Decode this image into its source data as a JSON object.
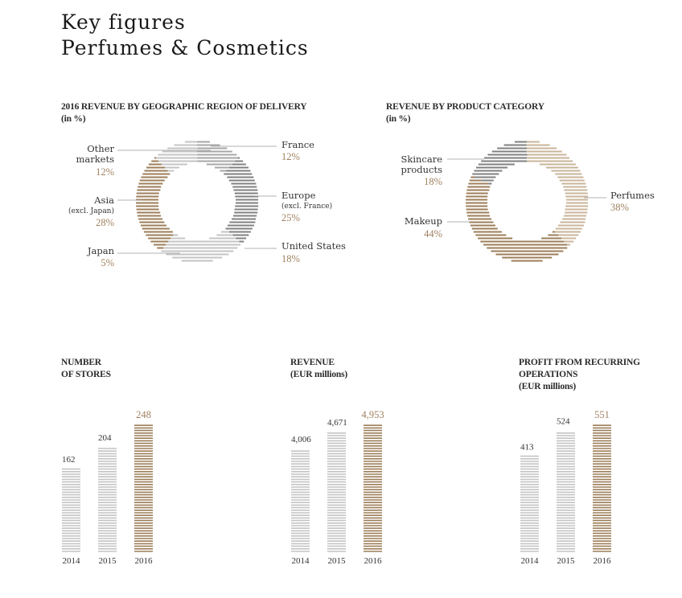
{
  "page": {
    "title_line1": "Key figures",
    "title_line2": "Perfumes & Cosmetics"
  },
  "colors": {
    "gold": "#9c7e59",
    "gold_text": "#a08260",
    "grey_dark": "#808080",
    "grey_light": "#c4c4c4",
    "grey_mid": "#a7a7a7"
  },
  "chart_data": [
    {
      "type": "pie",
      "title": "2016 REVENUE BY GEOGRAPHIC REGION OF DELIVERY",
      "subtitle": "(in %)",
      "slices": [
        {
          "name": "France",
          "detail": "",
          "value": 12,
          "value_label": "12%"
        },
        {
          "name": "Europe",
          "detail": "(excl. France)",
          "value": 25,
          "value_label": "25%"
        },
        {
          "name": "United States",
          "detail": "",
          "value": 18,
          "value_label": "18%"
        },
        {
          "name": "Japan",
          "detail": "",
          "value": 5,
          "value_label": "5%"
        },
        {
          "name": "Asia",
          "detail": "(excl. Japan)",
          "value": 28,
          "value_label": "28%"
        },
        {
          "name": "Other markets",
          "detail": "",
          "value": 12,
          "value_label": "12%"
        }
      ]
    },
    {
      "type": "pie",
      "title": "REVENUE BY PRODUCT CATEGORY",
      "subtitle": "(in %)",
      "slices": [
        {
          "name": "Perfumes",
          "value": 38,
          "value_label": "38%"
        },
        {
          "name": "Makeup",
          "value": 44,
          "value_label": "44%"
        },
        {
          "name": "Skincare products",
          "value": 18,
          "value_label": "18%"
        }
      ]
    },
    {
      "type": "bar",
      "title": "NUMBER OF STORES",
      "title_line1": "NUMBER",
      "title_line2": "OF STORES",
      "categories": [
        "2014",
        "2015",
        "2016"
      ],
      "values": [
        162,
        204,
        248
      ],
      "value_labels": [
        "162",
        "204",
        "248"
      ],
      "ylim": [
        0,
        248
      ]
    },
    {
      "type": "bar",
      "title": "REVENUE (EUR millions)",
      "title_line1": "REVENUE",
      "title_line2": "(EUR millions)",
      "categories": [
        "2014",
        "2015",
        "2016"
      ],
      "values": [
        4006,
        4671,
        4953
      ],
      "value_labels": [
        "4,006",
        "4,671",
        "4,953"
      ],
      "ylim": [
        0,
        4953
      ]
    },
    {
      "type": "bar",
      "title": "PROFIT FROM RECURRING OPERATIONS (EUR millions)",
      "title_line1": "PROFIT FROM RECURRING",
      "title_line2": "OPERATIONS",
      "title_line3": "(EUR millions)",
      "categories": [
        "2014",
        "2015",
        "2016"
      ],
      "values": [
        413,
        524,
        551
      ],
      "value_labels": [
        "413",
        "524",
        "551"
      ],
      "ylim": [
        0,
        551
      ]
    }
  ]
}
